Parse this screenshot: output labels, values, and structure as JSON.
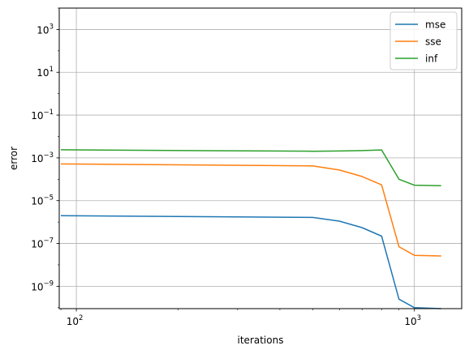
{
  "chart_data": {
    "type": "line",
    "title": "",
    "xlabel": "iterations",
    "ylabel": "error",
    "xscale": "log",
    "yscale": "log",
    "xlim": [
      89,
      1380
    ],
    "ylim": [
      9e-11,
      10000.0
    ],
    "grid": true,
    "legend_position": "top-right",
    "x_ticks": [
      {
        "value": 100,
        "base": "10",
        "exp": "2"
      },
      {
        "value": 1000,
        "base": "10",
        "exp": "3"
      }
    ],
    "y_ticks": [
      {
        "value": 1000.0,
        "base": "10",
        "exp": "3"
      },
      {
        "value": 10.0,
        "base": "10",
        "exp": "1"
      },
      {
        "value": 0.1,
        "base": "10",
        "exp": "−1"
      },
      {
        "value": 0.001,
        "base": "10",
        "exp": "−3"
      },
      {
        "value": 1e-05,
        "base": "10",
        "exp": "−5"
      },
      {
        "value": 1e-07,
        "base": "10",
        "exp": "−7"
      },
      {
        "value": 1e-09,
        "base": "10",
        "exp": "−9"
      }
    ],
    "x": [
      90,
      500,
      600,
      700,
      800,
      900,
      1000,
      1200
    ],
    "series": [
      {
        "name": "mse",
        "color": "#1f77b4",
        "values": [
          2e-06,
          1.65e-06,
          1.1e-06,
          5.5e-07,
          2.2e-07,
          2.5e-10,
          1e-10,
          9e-11
        ]
      },
      {
        "name": "sse",
        "color": "#ff7f0e",
        "values": [
          0.00052,
          0.00042,
          0.00027,
          0.000135,
          5.5e-05,
          7e-08,
          2.8e-08,
          2.6e-08
        ]
      },
      {
        "name": "inf",
        "color": "#2ca02c",
        "values": [
          0.0024,
          0.00205,
          0.0021,
          0.0022,
          0.00235,
          0.0001,
          5.3e-05,
          5e-05
        ]
      }
    ]
  }
}
